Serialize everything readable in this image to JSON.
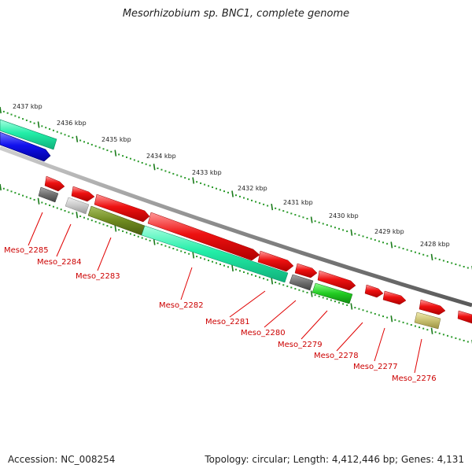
{
  "title": "Mesorhizobium sp. BNC1, complete genome",
  "accession": "Accession: NC_008254",
  "summary": "Topology: circular; Length: 4,412,446 bp; Genes: 4,131",
  "colors": {
    "red": "#ee1111",
    "teal": "#22eea8",
    "blue": "#1111ee",
    "dark_gray": "#6f6f6f",
    "light_gray": "#c8c8c8",
    "olive": "#6f8a20",
    "green": "#22cc22",
    "khaki": "#c8c070",
    "label_red": "#cc0000",
    "tick_green": "#2a8a2a"
  },
  "scale_labels": [
    "2437 kbp",
    "2436 kbp",
    "2435 kbp",
    "2434 kbp",
    "2433 kbp",
    "2432 kbp",
    "2431 kbp",
    "2430 kbp",
    "2429 kbp",
    "2428 kbp"
  ],
  "genes": [
    {
      "label": "Meso_2285"
    },
    {
      "label": "Meso_2284"
    },
    {
      "label": "Meso_2283"
    },
    {
      "label": "Meso_2282"
    },
    {
      "label": "Meso_2281"
    },
    {
      "label": "Meso_2280"
    },
    {
      "label": "Meso_2279"
    },
    {
      "label": "Meso_2278"
    },
    {
      "label": "Meso_2277"
    },
    {
      "label": "Meso_2276"
    }
  ]
}
